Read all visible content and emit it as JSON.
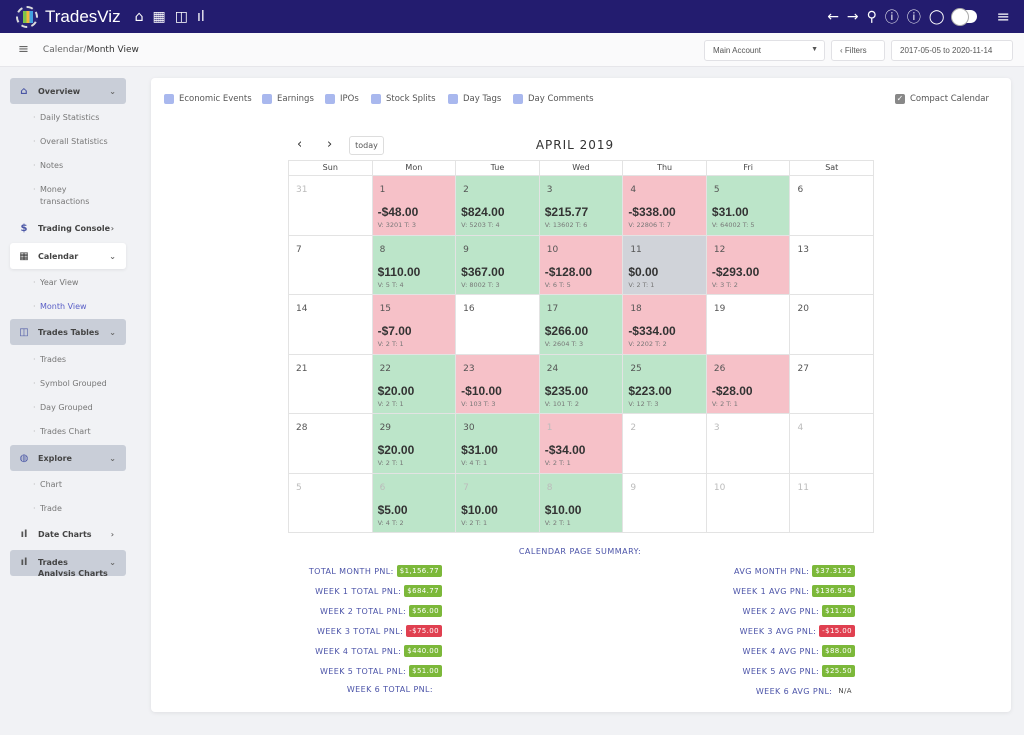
{
  "app": {
    "title": "TradesViz"
  },
  "topbar": {
    "left_icons": [
      "home-icon",
      "calendar-icon",
      "columns-icon",
      "bar-chart-icon"
    ],
    "right_icons": [
      "arrow-left-icon",
      "arrow-right-icon",
      "search-icon",
      "help-icon",
      "info-icon",
      "chat-icon"
    ]
  },
  "breadcrumb": {
    "parent": "Calendar",
    "separator": " / ",
    "current": "Month View"
  },
  "toolbar": {
    "account": "Main Account",
    "filters": "Filters",
    "date_range": "2017-05-05 to 2020-11-14"
  },
  "sidebar": {
    "overview": "Overview",
    "daily": "Daily Statistics",
    "overall": "Overall Statistics",
    "notes": "Notes",
    "money": "Money transactions",
    "console": "Trading Console",
    "calendar": "Calendar",
    "year": "Year View",
    "month": "Month View",
    "tables": "Trades Tables",
    "trades": "Trades",
    "symbol": "Symbol Grouped",
    "day": "Day Grouped",
    "tchart": "Trades Chart",
    "explore": "Explore",
    "chart": "Chart",
    "trade": "Trade",
    "date_charts": "Date Charts",
    "analysis": "Trades Analysis Charts"
  },
  "filters": {
    "economic": "Economic Events",
    "earnings": "Earnings",
    "ipos": "IPOs",
    "splits": "Stock Splits",
    "tags": "Day Tags",
    "comments": "Day Comments",
    "compact": "Compact Calendar"
  },
  "calendar": {
    "title": "APRIL 2019",
    "today": "today",
    "weekdays": [
      "Sun",
      "Mon",
      "Tue",
      "Wed",
      "Thu",
      "Fri",
      "Sat"
    ],
    "weeks": [
      [
        {
          "d": "31",
          "s": "none",
          "m": true
        },
        {
          "d": "1",
          "p": "-$48.00",
          "v": "V: 3201 T: 3",
          "s": "neg"
        },
        {
          "d": "2",
          "p": "$824.00",
          "v": "V: 5203 T: 4",
          "s": "pos"
        },
        {
          "d": "3",
          "p": "$215.77",
          "v": "V: 13602 T: 6",
          "s": "pos"
        },
        {
          "d": "4",
          "p": "-$338.00",
          "v": "V: 22806 T: 7",
          "s": "neg"
        },
        {
          "d": "5",
          "p": "$31.00",
          "v": "V: 64002 T: 5",
          "s": "pos"
        },
        {
          "d": "6",
          "s": "none"
        }
      ],
      [
        {
          "d": "7",
          "s": "none"
        },
        {
          "d": "8",
          "p": "$110.00",
          "v": "V: 5 T: 4",
          "s": "pos"
        },
        {
          "d": "9",
          "p": "$367.00",
          "v": "V: 8002 T: 3",
          "s": "pos"
        },
        {
          "d": "10",
          "p": "-$128.00",
          "v": "V: 6 T: 5",
          "s": "neg"
        },
        {
          "d": "11",
          "p": "$0.00",
          "v": "V: 2 T: 1",
          "s": "zero"
        },
        {
          "d": "12",
          "p": "-$293.00",
          "v": "V: 3 T: 2",
          "s": "neg"
        },
        {
          "d": "13",
          "s": "none"
        }
      ],
      [
        {
          "d": "14",
          "s": "none"
        },
        {
          "d": "15",
          "p": "-$7.00",
          "v": "V: 2 T: 1",
          "s": "neg"
        },
        {
          "d": "16",
          "s": "none"
        },
        {
          "d": "17",
          "p": "$266.00",
          "v": "V: 2604 T: 3",
          "s": "pos"
        },
        {
          "d": "18",
          "p": "-$334.00",
          "v": "V: 2202 T: 2",
          "s": "neg"
        },
        {
          "d": "19",
          "s": "none"
        },
        {
          "d": "20",
          "s": "none"
        }
      ],
      [
        {
          "d": "21",
          "s": "none"
        },
        {
          "d": "22",
          "p": "$20.00",
          "v": "V: 2 T: 1",
          "s": "pos"
        },
        {
          "d": "23",
          "p": "-$10.00",
          "v": "V: 103 T: 3",
          "s": "neg"
        },
        {
          "d": "24",
          "p": "$235.00",
          "v": "V: 101 T: 2",
          "s": "pos"
        },
        {
          "d": "25",
          "p": "$223.00",
          "v": "V: 12 T: 3",
          "s": "pos"
        },
        {
          "d": "26",
          "p": "-$28.00",
          "v": "V: 2 T: 1",
          "s": "neg"
        },
        {
          "d": "27",
          "s": "none"
        }
      ],
      [
        {
          "d": "28",
          "s": "none"
        },
        {
          "d": "29",
          "p": "$20.00",
          "v": "V: 2 T: 1",
          "s": "pos"
        },
        {
          "d": "30",
          "p": "$31.00",
          "v": "V: 4 T: 1",
          "s": "pos"
        },
        {
          "d": "1",
          "p": "-$34.00",
          "v": "V: 2 T: 1",
          "s": "neg",
          "m": true
        },
        {
          "d": "2",
          "s": "none",
          "m": true
        },
        {
          "d": "3",
          "s": "none",
          "m": true
        },
        {
          "d": "4",
          "s": "none",
          "m": true
        }
      ],
      [
        {
          "d": "5",
          "s": "none",
          "m": true
        },
        {
          "d": "6",
          "p": "$5.00",
          "v": "V: 4 T: 2",
          "s": "pos",
          "m": true
        },
        {
          "d": "7",
          "p": "$10.00",
          "v": "V: 2 T: 1",
          "s": "pos",
          "m": true
        },
        {
          "d": "8",
          "p": "$10.00",
          "v": "V: 2 T: 1",
          "s": "pos",
          "m": true
        },
        {
          "d": "9",
          "s": "none",
          "m": true
        },
        {
          "d": "10",
          "s": "none",
          "m": true
        },
        {
          "d": "11",
          "s": "none",
          "m": true
        }
      ]
    ]
  },
  "summary": {
    "title": "CALENDAR PAGE SUMMARY:",
    "left": [
      {
        "label": "TOTAL MONTH PNL:",
        "value": "$1,156.77",
        "s": "pos"
      },
      {
        "label": "WEEK 1 TOTAL PNL:",
        "value": "$684.77",
        "s": "pos"
      },
      {
        "label": "WEEK 2 TOTAL PNL:",
        "value": "$56.00",
        "s": "pos"
      },
      {
        "label": "WEEK 3 TOTAL PNL:",
        "value": "-$75.00",
        "s": "neg"
      },
      {
        "label": "WEEK 4 TOTAL PNL:",
        "value": "$440.00",
        "s": "pos"
      },
      {
        "label": "WEEK 5 TOTAL PNL:",
        "value": "$51.00",
        "s": "pos"
      },
      {
        "label": "WEEK 6 TOTAL PNL:",
        "value": "",
        "s": "plain"
      }
    ],
    "right": [
      {
        "label": "AVG MONTH PNL:",
        "value": "$37.3152",
        "s": "pos"
      },
      {
        "label": "WEEK 1 AVG PNL:",
        "value": "$136.954",
        "s": "pos"
      },
      {
        "label": "WEEK 2 AVG PNL:",
        "value": "$11.20",
        "s": "pos"
      },
      {
        "label": "WEEK 3 AVG PNL:",
        "value": "-$15.00",
        "s": "neg"
      },
      {
        "label": "WEEK 4 AVG PNL:",
        "value": "$88.00",
        "s": "pos"
      },
      {
        "label": "WEEK 5 AVG PNL:",
        "value": "$25.50",
        "s": "pos"
      },
      {
        "label": "WEEK 6 AVG PNL:",
        "value": "N/A",
        "s": "plain"
      }
    ]
  },
  "colors": {
    "topbar": "#231c6f",
    "positive": "#bce5c9",
    "negative": "#f6c1c8",
    "badge_pos": "#7cb83a",
    "badge_neg": "#e04050"
  }
}
